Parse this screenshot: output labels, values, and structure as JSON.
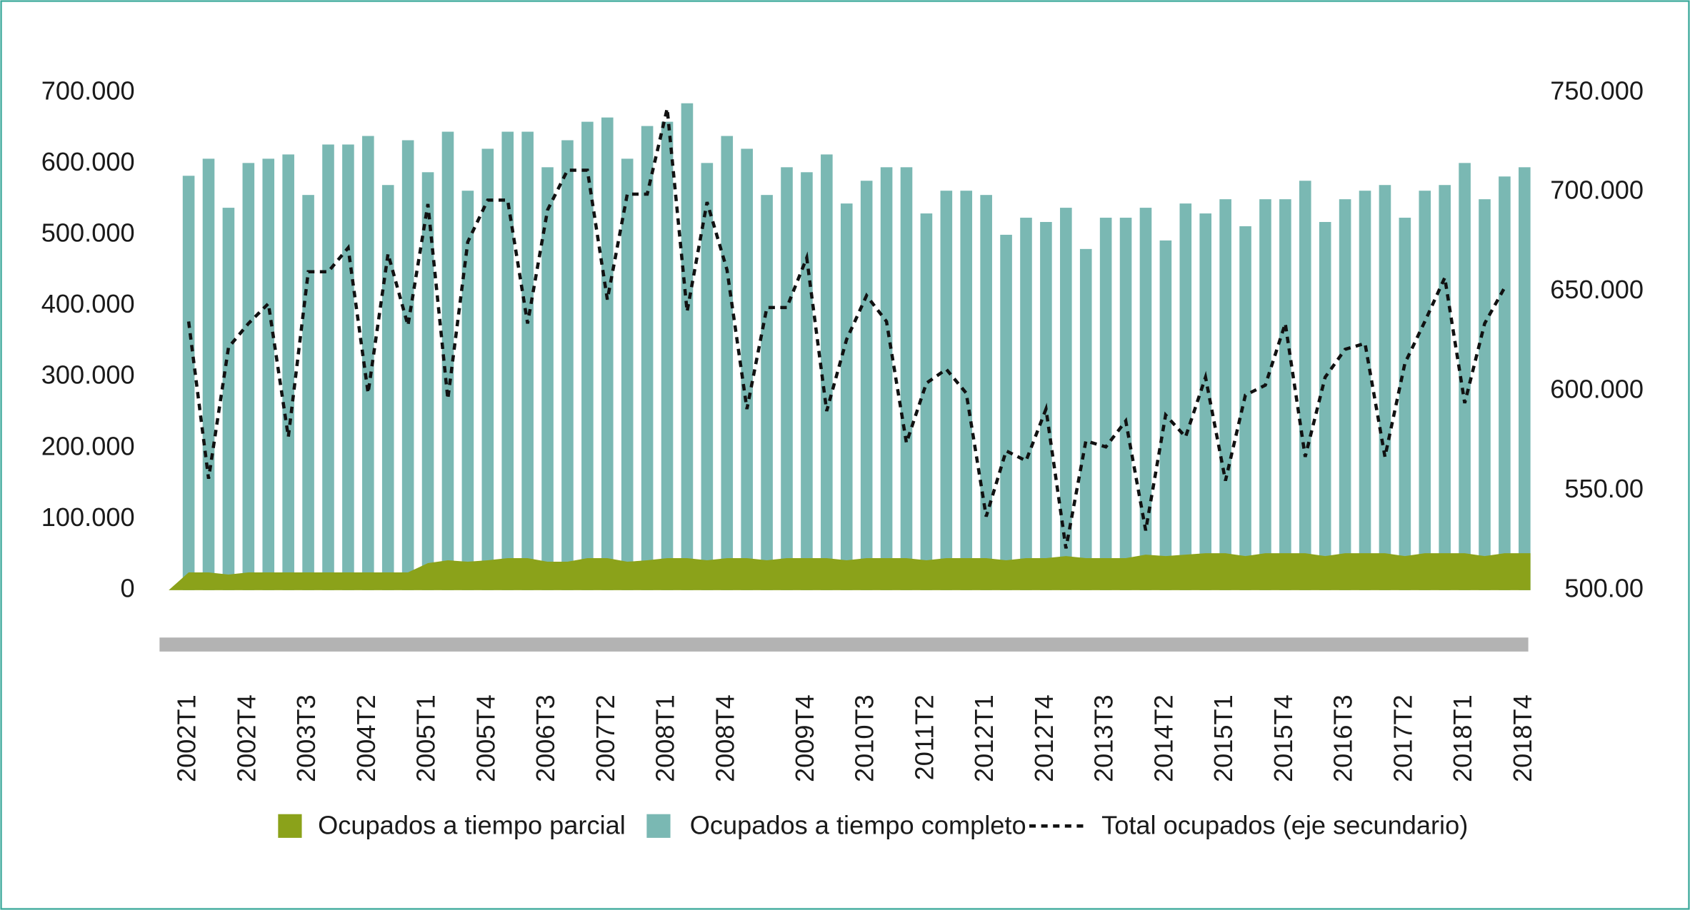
{
  "chart_data": {
    "type": "bar",
    "categories": [
      "2002T1",
      null,
      null,
      "2002T4",
      null,
      null,
      "2003T3",
      null,
      null,
      "2004T2",
      null,
      null,
      "2005T1",
      null,
      null,
      "2005T4",
      null,
      null,
      "2006T3",
      null,
      null,
      "2007T2",
      null,
      null,
      "2008T1",
      null,
      null,
      "2008T4",
      null,
      null,
      null,
      "2009T4",
      null,
      null,
      "2010T3",
      null,
      null,
      "2011T2",
      null,
      null,
      "2012T1",
      null,
      null,
      "2012T4",
      null,
      null,
      "2013T3",
      null,
      null,
      "2014T2",
      null,
      null,
      "2015T1",
      null,
      null,
      "2015T4",
      null,
      null,
      "2016T3",
      null,
      null,
      "2017T2",
      null,
      null,
      "2018T1",
      null,
      null,
      "2018T4"
    ],
    "series": [
      {
        "name": "Ocupados a tiempo parcial",
        "type": "area",
        "color": "#8ba21a",
        "values": [
          25000,
          25000,
          22000,
          25000,
          25000,
          25000,
          25000,
          25000,
          25000,
          25000,
          25000,
          25000,
          38000,
          42000,
          40000,
          42000,
          45000,
          45000,
          40000,
          40000,
          45000,
          45000,
          40000,
          42000,
          45000,
          45000,
          42000,
          45000,
          45000,
          42000,
          45000,
          45000,
          45000,
          42000,
          45000,
          45000,
          45000,
          42000,
          45000,
          45000,
          45000,
          42000,
          45000,
          45000,
          48000,
          45000,
          45000,
          45000,
          50000,
          48000,
          50000,
          52000,
          52000,
          48000,
          52000,
          52000,
          52000,
          48000,
          52000,
          52000,
          52000,
          48000,
          52000,
          52000,
          52000,
          48000,
          52000,
          52000
        ]
      },
      {
        "name": "Ocupados a tiempo completo",
        "type": "bar",
        "color": "#7ab8b3",
        "values": [
          583000,
          607000,
          538000,
          601000,
          607000,
          613000,
          556000,
          627000,
          627000,
          639000,
          570000,
          633000,
          588000,
          645000,
          562000,
          621000,
          645000,
          645000,
          595000,
          633000,
          659000,
          665000,
          607000,
          653000,
          659000,
          685000,
          601000,
          639000,
          621000,
          556000,
          595000,
          588000,
          613000,
          544000,
          576000,
          595000,
          595000,
          530000,
          562000,
          562000,
          556000,
          500000,
          524000,
          518000,
          538000,
          480000,
          524000,
          524000,
          538000,
          492000,
          544000,
          530000,
          550000,
          512000,
          550000,
          550000,
          576000,
          518000,
          550000,
          562000,
          570000,
          524000,
          562000,
          570000,
          601000,
          550000,
          582000,
          595000
        ]
      },
      {
        "name": "Total ocupados (eje secundario)",
        "type": "line",
        "axis": "y2",
        "color": "#111111",
        "dashed": true,
        "values": [
          635000,
          556000,
          622000,
          634000,
          644000,
          577000,
          660000,
          660000,
          672000,
          599000,
          669000,
          633000,
          694000,
          596000,
          675000,
          696000,
          696000,
          634000,
          691000,
          711000,
          711000,
          646000,
          699000,
          699000,
          742000,
          640000,
          695000,
          661000,
          591000,
          642000,
          642000,
          667000,
          590000,
          626000,
          648000,
          635000,
          574000,
          604000,
          611000,
          599000,
          537000,
          570000,
          565000,
          591000,
          521000,
          575000,
          572000,
          585000,
          530000,
          588000,
          577000,
          607000,
          555000,
          598000,
          603000,
          634000,
          567000,
          607000,
          621000,
          624000,
          567000,
          614000,
          635000,
          657000,
          594000,
          634000,
          652000,
          null
        ]
      }
    ],
    "ylim": [
      0,
      700000
    ],
    "yticks": [
      0,
      {
        "value": 100000,
        "label": "100.000"
      },
      {
        "value": 200000,
        "label": "200.000"
      },
      {
        "value": 300000,
        "label": "300.000"
      },
      {
        "value": 400000,
        "label": "400.000"
      },
      {
        "value": 500000,
        "label": "500.000"
      },
      {
        "value": 600000,
        "label": "600.000"
      },
      {
        "value": 700000,
        "label": "700.000"
      }
    ],
    "y2lim": [
      500000,
      750000
    ],
    "y2ticks": [
      {
        "value": 500000,
        "label": "500.00"
      },
      {
        "value": 550000,
        "label": "550.00"
      },
      {
        "value": 600000,
        "label": "600.000"
      },
      {
        "value": 650000,
        "label": "650.000"
      },
      {
        "value": 700000,
        "label": "700.000"
      },
      {
        "value": 750000,
        "label": "750.000"
      }
    ],
    "grid": false,
    "legend": "bottom"
  }
}
